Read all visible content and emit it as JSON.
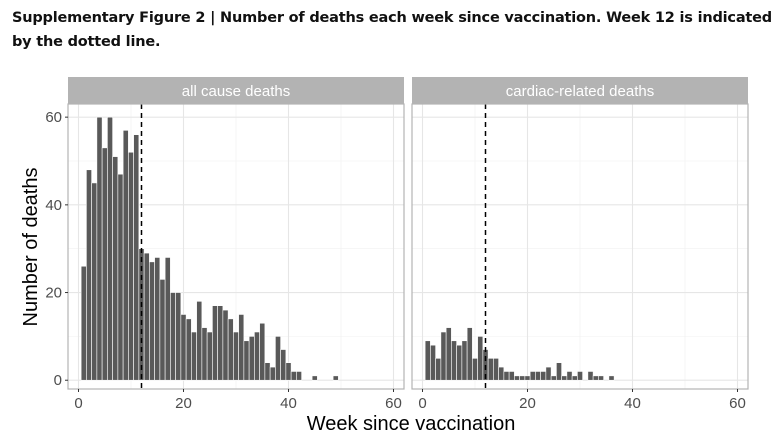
{
  "caption": "Supplementary Figure 2 | Number of deaths each week since vaccination. Week 12 is indicated by the dotted line.",
  "chart_data": {
    "type": "bar",
    "title": "Supplementary Figure 2 | Number of deaths each week since vaccination. Week 12 is indicated by the dotted line.",
    "xlabel": "Week since vaccination",
    "ylabel": "Number of deaths",
    "xlim": [
      -2,
      62
    ],
    "ylim": [
      -2,
      63
    ],
    "x_ticks": [
      0,
      20,
      40,
      60
    ],
    "y_ticks": [
      0,
      20,
      40,
      60
    ],
    "x_tick_labels": [
      "0",
      "20",
      "40",
      "60"
    ],
    "y_tick_labels": [
      "0",
      "20",
      "40",
      "60"
    ],
    "grid": true,
    "reference_line": {
      "x": 12,
      "style": "dashed",
      "label": "Week 12"
    },
    "facets": [
      {
        "name": "all cause deaths",
        "weeks": [
          1,
          2,
          3,
          4,
          5,
          6,
          7,
          8,
          9,
          10,
          11,
          12,
          13,
          14,
          15,
          16,
          17,
          18,
          19,
          20,
          21,
          22,
          23,
          24,
          25,
          26,
          27,
          28,
          29,
          30,
          31,
          32,
          33,
          34,
          35,
          36,
          37,
          38,
          39,
          40,
          41,
          42,
          45,
          49
        ],
        "values": [
          26,
          48,
          45,
          60,
          53,
          60,
          51,
          47,
          57,
          52,
          56,
          30,
          29,
          27,
          28,
          23,
          28,
          20,
          20,
          15,
          14,
          11,
          18,
          12,
          11,
          17,
          17,
          16,
          14,
          11,
          15,
          9,
          10,
          11,
          13,
          4,
          3,
          10,
          7,
          4,
          2,
          2,
          1,
          1
        ]
      },
      {
        "name": "cardiac-related deaths",
        "weeks": [
          1,
          2,
          3,
          4,
          5,
          6,
          7,
          8,
          9,
          10,
          11,
          12,
          13,
          14,
          15,
          16,
          17,
          18,
          19,
          20,
          21,
          22,
          23,
          24,
          25,
          26,
          27,
          28,
          29,
          30,
          31,
          32,
          33,
          34,
          35,
          36
        ],
        "values": [
          9,
          8,
          5,
          11,
          12,
          9,
          8,
          9,
          12,
          5,
          10,
          7,
          5,
          5,
          3,
          2,
          2,
          1,
          1,
          1,
          2,
          2,
          2,
          3,
          1,
          4,
          1,
          2,
          1,
          2,
          0,
          2,
          1,
          1,
          0,
          1
        ]
      }
    ]
  }
}
